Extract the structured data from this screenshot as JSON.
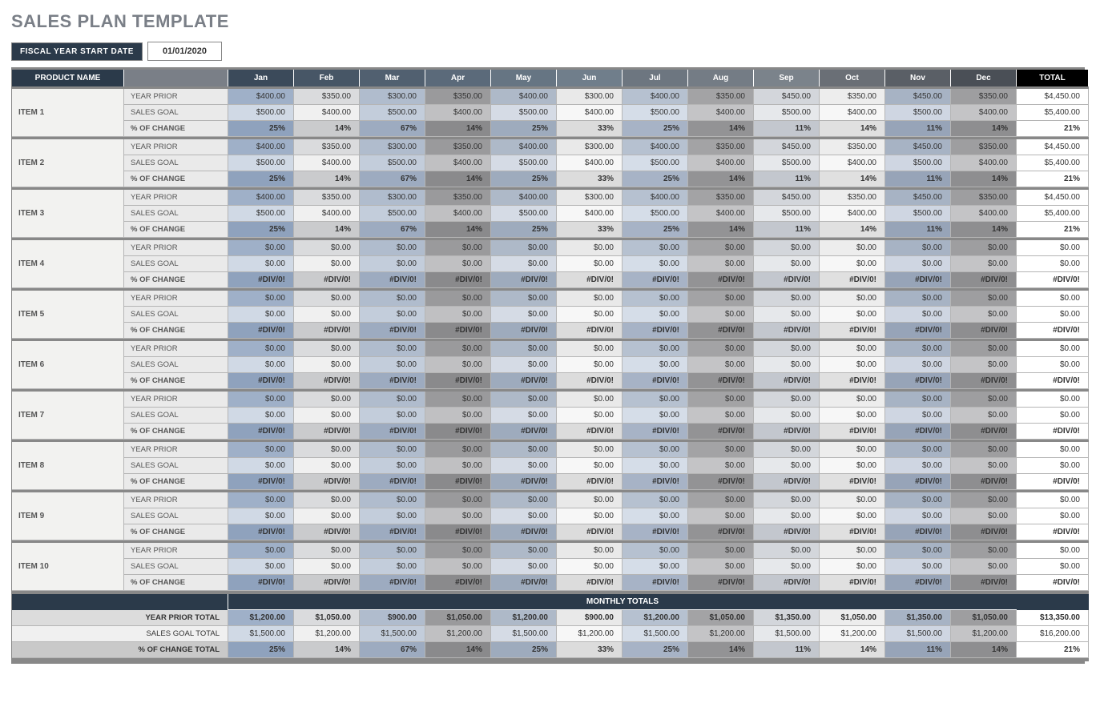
{
  "title": "SALES PLAN TEMPLATE",
  "fiscal": {
    "label": "FISCAL YEAR START DATE",
    "date": "01/01/2020"
  },
  "columns": {
    "product": "PRODUCT NAME",
    "months": [
      "Jan",
      "Feb",
      "Mar",
      "Apr",
      "May",
      "Jun",
      "Jul",
      "Aug",
      "Sep",
      "Oct",
      "Nov",
      "Dec"
    ],
    "total": "TOTAL"
  },
  "metrics": {
    "year_prior": "YEAR PRIOR",
    "sales_goal": "SALES GOAL",
    "pct_change": "% OF CHANGE"
  },
  "filled": {
    "year_prior": [
      "$400.00",
      "$350.00",
      "$300.00",
      "$350.00",
      "$400.00",
      "$300.00",
      "$400.00",
      "$350.00",
      "$450.00",
      "$350.00",
      "$450.00",
      "$350.00"
    ],
    "sales_goal": [
      "$500.00",
      "$400.00",
      "$500.00",
      "$400.00",
      "$500.00",
      "$400.00",
      "$500.00",
      "$400.00",
      "$500.00",
      "$400.00",
      "$500.00",
      "$400.00"
    ],
    "pct_change": [
      "25%",
      "14%",
      "67%",
      "14%",
      "25%",
      "33%",
      "25%",
      "14%",
      "11%",
      "14%",
      "11%",
      "14%"
    ],
    "total_yp": "$4,450.00",
    "total_sg": "$5,400.00",
    "total_pc": "21%"
  },
  "empty": {
    "zero": "$0.00",
    "div": "#DIV/0!"
  },
  "items": [
    {
      "name": "ITEM 1",
      "mode": "filled"
    },
    {
      "name": "ITEM 2",
      "mode": "filled"
    },
    {
      "name": "ITEM 3",
      "mode": "filled"
    },
    {
      "name": "ITEM 4",
      "mode": "empty"
    },
    {
      "name": "ITEM 5",
      "mode": "empty"
    },
    {
      "name": "ITEM 6",
      "mode": "empty"
    },
    {
      "name": "ITEM 7",
      "mode": "empty"
    },
    {
      "name": "ITEM 8",
      "mode": "empty"
    },
    {
      "name": "ITEM 9",
      "mode": "empty"
    },
    {
      "name": "ITEM 10",
      "mode": "empty"
    }
  ],
  "footer": {
    "header": "MONTHLY TOTALS",
    "year_prior_label": "YEAR PRIOR TOTAL",
    "sales_goal_label": "SALES GOAL TOTAL",
    "pct_change_label": "% OF CHANGE TOTAL",
    "year_prior": [
      "$1,200.00",
      "$1,050.00",
      "$900.00",
      "$1,050.00",
      "$1,200.00",
      "$900.00",
      "$1,200.00",
      "$1,050.00",
      "$1,350.00",
      "$1,050.00",
      "$1,350.00",
      "$1,050.00"
    ],
    "sales_goal": [
      "$1,500.00",
      "$1,200.00",
      "$1,500.00",
      "$1,200.00",
      "$1,500.00",
      "$1,200.00",
      "$1,500.00",
      "$1,200.00",
      "$1,500.00",
      "$1,200.00",
      "$1,500.00",
      "$1,200.00"
    ],
    "pct_change": [
      "25%",
      "14%",
      "67%",
      "14%",
      "25%",
      "33%",
      "25%",
      "14%",
      "11%",
      "14%",
      "11%",
      "14%"
    ],
    "total_yp": "$13,350.00",
    "total_sg": "$16,200.00",
    "total_pc": "21%"
  },
  "style": {
    "header_colors": [
      "#3b4a5a",
      "#475666",
      "#516070",
      "#5b6a7a",
      "#667583",
      "#707e8b",
      "#6d7680",
      "#747c85",
      "#7b838b",
      "#6a6f76",
      "#5a5f66",
      "#4a4f56"
    ]
  }
}
